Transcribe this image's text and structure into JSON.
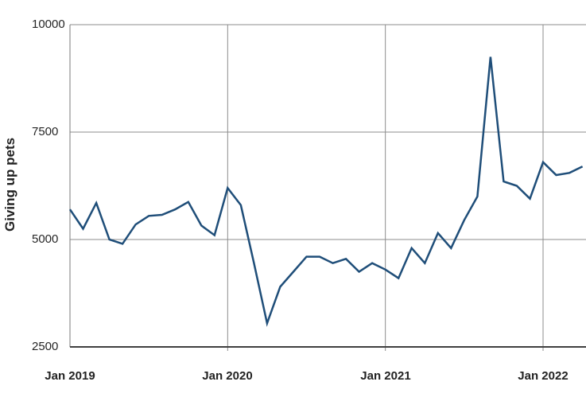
{
  "chart": {
    "y_axis_title": "Giving up pets"
  },
  "chart_data": {
    "type": "line",
    "title": "",
    "xlabel": "",
    "ylabel": "Giving up pets",
    "ylim": [
      2500,
      10000
    ],
    "yticks": [
      2500,
      5000,
      7500,
      10000
    ],
    "ytick_labels": [
      "2500",
      "5000",
      "7500",
      "10000"
    ],
    "xtick_indices": [
      0,
      12,
      24,
      36
    ],
    "xtick_labels": [
      "Jan 2019",
      "Jan 2020",
      "Jan 2021",
      "Jan 2022"
    ],
    "grid": true,
    "legend": "none",
    "x": [
      "Jan 2019",
      "Feb 2019",
      "Mar 2019",
      "Apr 2019",
      "May 2019",
      "Jun 2019",
      "Jul 2019",
      "Aug 2019",
      "Sep 2019",
      "Oct 2019",
      "Nov 2019",
      "Dec 2019",
      "Jan 2020",
      "Feb 2020",
      "Mar 2020",
      "Apr 2020",
      "May 2020",
      "Jun 2020",
      "Jul 2020",
      "Aug 2020",
      "Sep 2020",
      "Oct 2020",
      "Nov 2020",
      "Dec 2020",
      "Jan 2021",
      "Feb 2021",
      "Mar 2021",
      "Apr 2021",
      "May 2021",
      "Jun 2021",
      "Jul 2021",
      "Aug 2021",
      "Sep 2021",
      "Oct 2021",
      "Nov 2021",
      "Dec 2021",
      "Jan 2022",
      "Feb 2022",
      "Mar 2022",
      "Apr 2022"
    ],
    "series": [
      {
        "name": "Giving up pets",
        "values": [
          5700,
          5250,
          5850,
          5000,
          4900,
          5350,
          5550,
          5575,
          5700,
          5875,
          5325,
          5100,
          6200,
          5800,
          4450,
          3050,
          3900,
          4250,
          4600,
          4600,
          4450,
          4550,
          4250,
          4450,
          4300,
          4100,
          4800,
          4450,
          5150,
          4800,
          5450,
          6000,
          9250,
          6350,
          6250,
          5950,
          6800,
          6500,
          6550,
          6700
        ]
      }
    ],
    "colors": {
      "line": "#1f4e79",
      "gridline": "#8c8c8c",
      "y_axis_line": "#7a7a7a",
      "x_axis_line": "#404040",
      "text": "#262626"
    }
  }
}
